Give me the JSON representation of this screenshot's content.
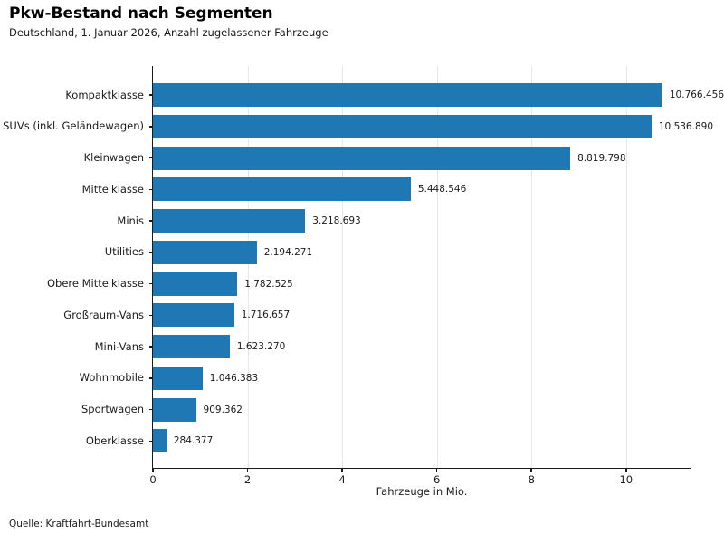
{
  "chart_data": {
    "type": "bar",
    "orientation": "horizontal",
    "title": "Pkw-Bestand nach Segmenten",
    "subtitle": "Deutschland, 1. Januar 2026, Anzahl zugelassener Fahrzeuge",
    "categories": [
      "Kompaktklasse",
      "SUVs (inkl. Geländewagen)",
      "Kleinwagen",
      "Mittelklasse",
      "Minis",
      "Utilities",
      "Obere Mittelklasse",
      "Großraum-Vans",
      "Mini-Vans",
      "Wohnmobile",
      "Sportwagen",
      "Oberklasse"
    ],
    "values": [
      10766456,
      10536890,
      8819798,
      5448546,
      3218693,
      2194271,
      1782525,
      1716657,
      1623270,
      1046383,
      909362,
      284377
    ],
    "value_labels": [
      "10.766.456",
      "10.536.890",
      "8.819.798",
      "5.448.546",
      "3.218.693",
      "2.194.271",
      "1.782.525",
      "1.716.657",
      "1.623.270",
      "1.046.383",
      "909.362",
      "284.377"
    ],
    "xlabel": "Fahrzeuge in Mio.",
    "x_ticks": [
      0,
      2,
      4,
      6,
      8,
      10
    ],
    "xlim": [
      0,
      11.4
    ],
    "unit_divisor": 1000000,
    "grid": true,
    "legend": "none",
    "bar_color": "#1f77b4",
    "grid_color": "#e6e6e6",
    "spine_color": "#1a1a1a",
    "source": "Quelle: Kraftfahrt-Bundesamt"
  }
}
